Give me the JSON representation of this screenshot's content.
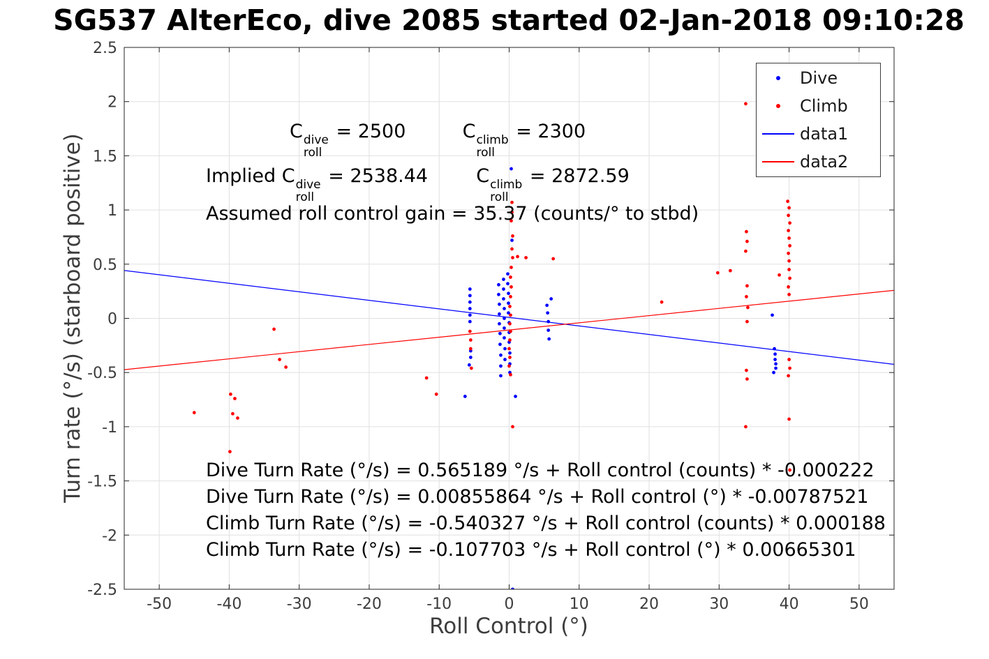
{
  "chart_data": {
    "type": "scatter",
    "title": "SG537 AlterEco, dive 2085 started 02-Jan-2018 09:10:28",
    "xlabel": "Roll Control (°)",
    "ylabel": "Turn rate (°/s) (starboard positive)",
    "xlim": [
      -55,
      55
    ],
    "ylim": [
      -2.5,
      2.5
    ],
    "grid": true,
    "colors": {
      "axis": "#262626",
      "tick": "#3d3d3d",
      "grid": "#e0e0e0",
      "dive": "#0000ff",
      "climb": "#ff0000"
    },
    "xticks": [
      {
        "v": -50,
        "label": "-50"
      },
      {
        "v": -40,
        "label": "-40"
      },
      {
        "v": -30,
        "label": "-30"
      },
      {
        "v": -20,
        "label": "-20"
      },
      {
        "v": -10,
        "label": "-10"
      },
      {
        "v": 0,
        "label": "0"
      },
      {
        "v": 10,
        "label": "10"
      },
      {
        "v": 20,
        "label": "20"
      },
      {
        "v": 30,
        "label": "30"
      },
      {
        "v": 40,
        "label": "40"
      },
      {
        "v": 50,
        "label": "50"
      }
    ],
    "yticks": [
      {
        "v": -2.5,
        "label": "-2.5"
      },
      {
        "v": -2,
        "label": "-2"
      },
      {
        "v": -1.5,
        "label": "-1.5"
      },
      {
        "v": -1,
        "label": "-1"
      },
      {
        "v": -0.5,
        "label": "-0.5"
      },
      {
        "v": 0,
        "label": "0"
      },
      {
        "v": 0.5,
        "label": "0.5"
      },
      {
        "v": 1,
        "label": "1"
      },
      {
        "v": 1.5,
        "label": "1.5"
      },
      {
        "v": 2,
        "label": "2"
      },
      {
        "v": 2.5,
        "label": "2.5"
      }
    ],
    "legend": {
      "position": "northeast",
      "entries": [
        {
          "label": "Dive",
          "marker": "dot",
          "color": "#0000ff"
        },
        {
          "label": "Climb",
          "marker": "dot",
          "color": "#ff0000"
        },
        {
          "label": "data1",
          "marker": "line",
          "color": "#0000ff"
        },
        {
          "label": "data2",
          "marker": "line",
          "color": "#ff0000"
        }
      ]
    },
    "series": [
      {
        "name": "Dive",
        "type": "scatter",
        "color": "#0000ff",
        "points": [
          [
            -6.3,
            -0.72
          ],
          [
            0.9,
            -0.72
          ],
          [
            -5.6,
            0.27
          ],
          [
            -5.6,
            0.21
          ],
          [
            -5.6,
            0.15
          ],
          [
            -5.6,
            0.09
          ],
          [
            -5.6,
            0.03
          ],
          [
            -5.6,
            -0.03
          ],
          [
            -5.5,
            -0.3
          ],
          [
            -5.5,
            -0.36
          ],
          [
            -5.7,
            -0.43
          ],
          [
            -1.5,
            0.31
          ],
          [
            -1.5,
            0.22
          ],
          [
            -1.4,
            0.13
          ],
          [
            -1.4,
            0.04
          ],
          [
            -1.4,
            -0.05
          ],
          [
            -1.3,
            -0.14
          ],
          [
            -1.3,
            -0.24
          ],
          [
            -1.2,
            -0.34
          ],
          [
            -1.2,
            -0.44
          ],
          [
            -1.2,
            -0.53
          ],
          [
            -0.8,
            0.36
          ],
          [
            -0.8,
            0.27
          ],
          [
            -0.8,
            0.18
          ],
          [
            -0.7,
            0.09
          ],
          [
            -0.7,
            0.0
          ],
          [
            -0.7,
            -0.09
          ],
          [
            -0.7,
            -0.18
          ],
          [
            -0.6,
            -0.28
          ],
          [
            -0.6,
            -0.38
          ],
          [
            -0.2,
            0.41
          ],
          [
            -0.2,
            0.32
          ],
          [
            -0.1,
            0.23
          ],
          [
            -0.1,
            0.14
          ],
          [
            -0.1,
            0.05
          ],
          [
            0.0,
            -0.04
          ],
          [
            0.0,
            -0.13
          ],
          [
            0.0,
            -0.22
          ],
          [
            0.1,
            -0.32
          ],
          [
            0.1,
            -0.42
          ],
          [
            0.1,
            -0.5
          ],
          [
            0.4,
            0.72
          ],
          [
            0.3,
            1.38
          ],
          [
            0.5,
            -2.5
          ],
          [
            5.4,
            0.12
          ],
          [
            5.5,
            0.05
          ],
          [
            5.6,
            -0.03
          ],
          [
            5.6,
            -0.11
          ],
          [
            5.7,
            -0.19
          ],
          [
            6.0,
            0.18
          ],
          [
            37.6,
            0.03
          ],
          [
            37.9,
            -0.28
          ],
          [
            38.0,
            -0.33
          ],
          [
            38.0,
            -0.38
          ],
          [
            38.1,
            -0.42
          ],
          [
            38.1,
            -0.46
          ],
          [
            37.8,
            -0.5
          ]
        ]
      },
      {
        "name": "Climb",
        "type": "scatter",
        "color": "#ff0000",
        "points": [
          [
            -45.0,
            -0.87
          ],
          [
            -39.8,
            -0.7
          ],
          [
            -39.2,
            -0.74
          ],
          [
            -39.5,
            -0.88
          ],
          [
            -38.8,
            -0.92
          ],
          [
            -39.9,
            -1.23
          ],
          [
            -33.6,
            -0.1
          ],
          [
            -32.8,
            -0.38
          ],
          [
            -31.9,
            -0.45
          ],
          [
            -11.8,
            -0.55
          ],
          [
            -10.4,
            -0.7
          ],
          [
            -5.6,
            -0.12
          ],
          [
            -5.5,
            -0.2
          ],
          [
            -5.5,
            -0.28
          ],
          [
            -5.4,
            -0.46
          ],
          [
            0.4,
            1.07
          ],
          [
            0.4,
            0.98
          ],
          [
            0.3,
            0.9
          ],
          [
            0.5,
            0.76
          ],
          [
            0.4,
            0.64
          ],
          [
            0.5,
            0.56
          ],
          [
            0.3,
            0.47
          ],
          [
            0.2,
            0.38
          ],
          [
            0.3,
            0.29
          ],
          [
            0.2,
            0.2
          ],
          [
            0.1,
            0.11
          ],
          [
            0.2,
            0.03
          ],
          [
            0.1,
            -0.05
          ],
          [
            0.2,
            -0.12
          ],
          [
            0.1,
            -0.2
          ],
          [
            0.0,
            -0.28
          ],
          [
            0.1,
            -0.36
          ],
          [
            0.0,
            -0.44
          ],
          [
            0.2,
            -0.52
          ],
          [
            0.5,
            -1.0
          ],
          [
            1.2,
            0.57
          ],
          [
            2.4,
            0.56
          ],
          [
            6.3,
            0.55
          ],
          [
            21.8,
            0.15
          ],
          [
            29.8,
            0.42
          ],
          [
            31.6,
            0.44
          ],
          [
            33.8,
            1.98
          ],
          [
            33.9,
            0.8
          ],
          [
            34.0,
            0.71
          ],
          [
            33.8,
            0.62
          ],
          [
            34.0,
            0.3
          ],
          [
            33.9,
            0.2
          ],
          [
            34.1,
            0.1
          ],
          [
            34.0,
            -0.03
          ],
          [
            33.9,
            -0.48
          ],
          [
            34.0,
            -0.56
          ],
          [
            33.8,
            -1.0
          ],
          [
            39.8,
            1.08
          ],
          [
            40.0,
            1.02
          ],
          [
            39.9,
            0.95
          ],
          [
            40.1,
            0.88
          ],
          [
            39.9,
            0.81
          ],
          [
            40.0,
            0.74
          ],
          [
            40.1,
            0.67
          ],
          [
            39.9,
            0.6
          ],
          [
            40.0,
            0.53
          ],
          [
            40.0,
            0.45
          ],
          [
            40.1,
            0.37
          ],
          [
            39.9,
            0.29
          ],
          [
            40.0,
            0.22
          ],
          [
            38.6,
            0.4
          ],
          [
            40.0,
            -0.38
          ],
          [
            40.1,
            -0.46
          ],
          [
            39.9,
            -0.53
          ],
          [
            40.0,
            -0.93
          ],
          [
            40.1,
            -1.4
          ]
        ]
      },
      {
        "name": "data1",
        "type": "line",
        "color": "#0000ff",
        "points": [
          [
            -55,
            0.4417
          ],
          [
            55,
            -0.4246
          ]
        ]
      },
      {
        "name": "data2",
        "type": "line",
        "color": "#ff0000",
        "points": [
          [
            -55,
            -0.4736
          ],
          [
            55,
            0.2582
          ]
        ]
      }
    ],
    "annotations": {
      "eq1": {
        "pre": "",
        "c": "C",
        "sup": "dive",
        "sub": "roll",
        "val": " = 2500",
        "c2": "C",
        "sup2": "climb",
        "sub2": "roll",
        "val2": " = 2300"
      },
      "eq2": {
        "pre": "Implied ",
        "c": "C",
        "sup": "dive",
        "sub": "roll",
        "val": " = 2538.44",
        "c2": "C",
        "sup2": "climb",
        "sub2": "roll",
        "val2": " = 2872.59"
      },
      "gain": "Assumed roll control gain = 35.37 (counts/° to stbd)",
      "fits": [
        "Dive Turn Rate (°/s) = 0.565189 °/s + Roll control (counts) * -0.000222",
        "Dive Turn Rate (°/s) = 0.00855864 °/s + Roll control (°) * -0.00787521",
        "Climb Turn Rate (°/s) = -0.540327 °/s + Roll control (counts) * 0.000188",
        "Climb Turn Rate (°/s) = -0.107703 °/s + Roll control (°) * 0.00665301"
      ]
    }
  }
}
